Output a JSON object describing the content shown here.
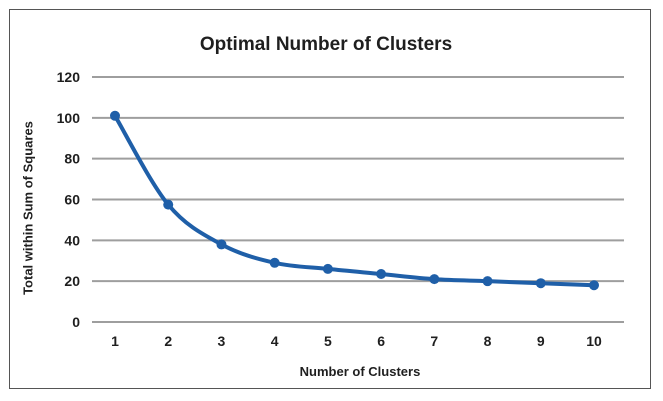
{
  "chart_data": {
    "type": "line",
    "title": "Optimal Number of Clusters",
    "xlabel": "Number of Clusters",
    "ylabel": "Total within Sum of Squares",
    "x": [
      1,
      2,
      3,
      4,
      5,
      6,
      7,
      8,
      9,
      10
    ],
    "series": [
      {
        "values": [
          101,
          57.5,
          38,
          29,
          26,
          23.5,
          21,
          20,
          19,
          18
        ]
      }
    ],
    "ylim": [
      0,
      120
    ],
    "yticks": [
      0,
      20,
      40,
      60,
      80,
      100,
      120
    ],
    "xticks": [
      1,
      2,
      3,
      4,
      5,
      6,
      7,
      8,
      9,
      10
    ],
    "grid": true,
    "line_color": "#1f5fa8",
    "grid_color": "#9e9e9e"
  }
}
